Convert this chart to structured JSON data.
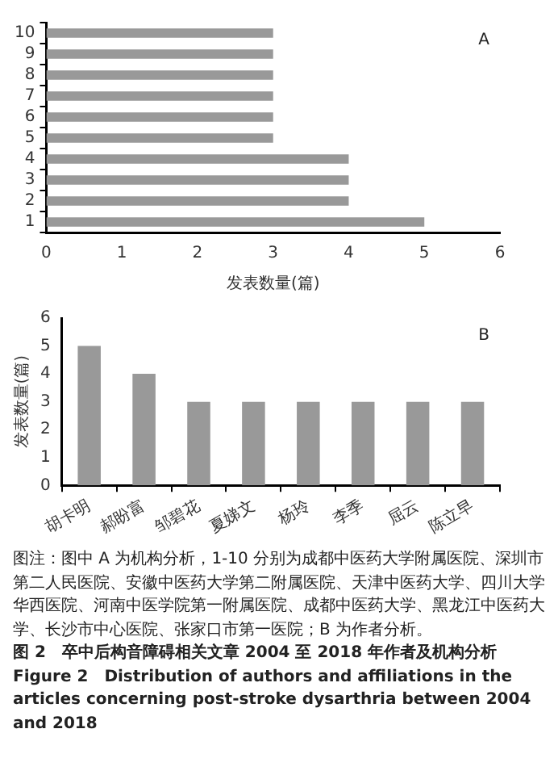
{
  "chart_data": [
    {
      "type": "bar",
      "orientation": "horizontal",
      "categories": [
        "10",
        "9",
        "8",
        "7",
        "6",
        "5",
        "4",
        "3",
        "2",
        "1"
      ],
      "values": [
        3,
        3,
        3,
        3,
        3,
        3,
        4,
        4,
        4,
        5
      ],
      "color": "#999999",
      "xlim": [
        0,
        6
      ],
      "xticks": [
        0,
        1,
        2,
        3,
        4,
        5,
        6
      ],
      "xlabel": "发表数量(篇)",
      "grid": false,
      "legend": false,
      "annotations": [
        "A"
      ]
    },
    {
      "type": "bar",
      "categories": [
        "胡卡明",
        "郝盼富",
        "邹碧花",
        "夏娣文",
        "杨玲",
        "李季",
        "屈云",
        "陈立早"
      ],
      "values": [
        5,
        4,
        3,
        3,
        3,
        3,
        3,
        3
      ],
      "color": "#999999",
      "ylim": [
        0,
        6
      ],
      "yticks": [
        0,
        1,
        2,
        3,
        4,
        5,
        6
      ],
      "ylabel": "发表数量(篇)",
      "grid": false,
      "legend": false,
      "annotations": [
        "B",
        "图注：图中 A 为机构分析，1-10 分别为成都中医药大学附属医院、深圳市第二人民医院、安徽中医药大学第二附属医院、天津中医药大学、四川大学华西医院、河南中医学院第一附属医院、成都中医药大学、黑龙江中医药大学、长沙市中心医院、张家口市第一医院；B 为作者分析。",
        "图 2　卒中后构音障碍相关文章 2004 至 2018 年作者及机构分析",
        "Figure 2　Distribution of authors and affiliations in the articles concerning post-stroke dysarthria between 2004 and 2018"
      ]
    }
  ]
}
